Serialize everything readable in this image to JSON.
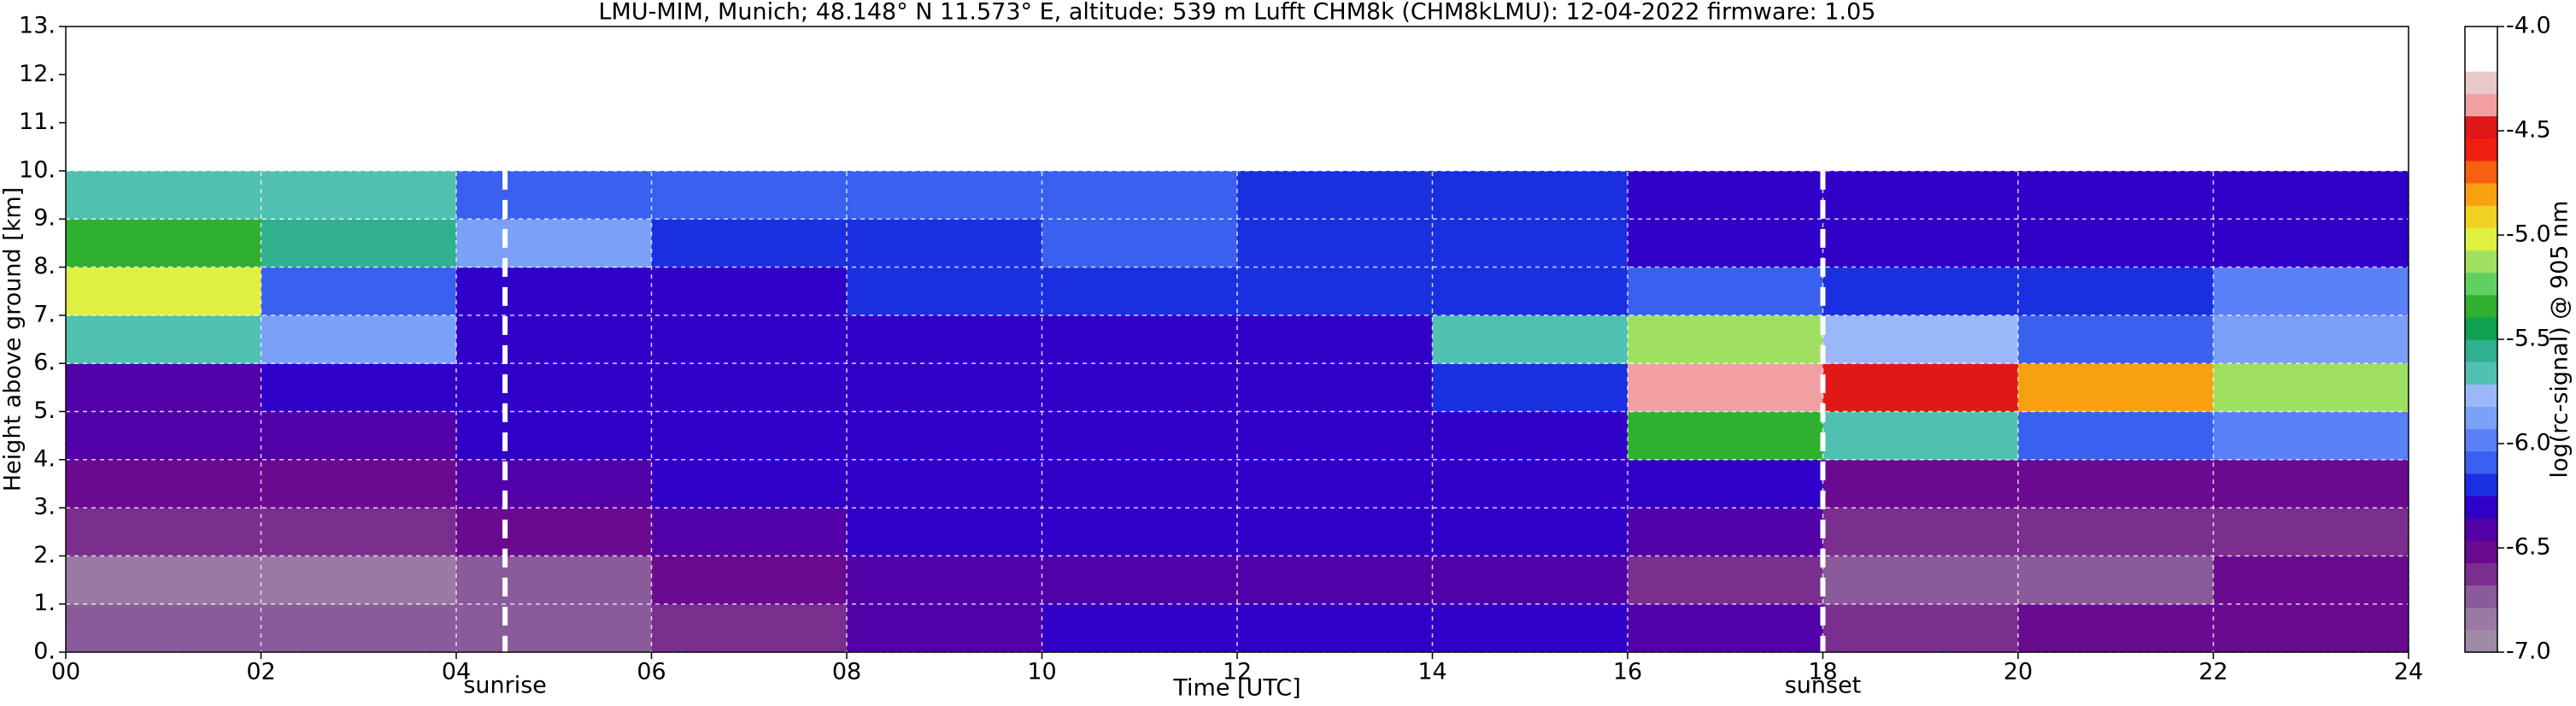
{
  "chart_data": {
    "type": "heatmap",
    "title": "LMU-MIM, Munich; 48.148° N 11.573° E, altitude: 539 m    Lufft CHM8k (CHM8kLMU): 12-04-2022    firmware: 1.05",
    "x_label": "Time [UTC]",
    "y_label": "Height above ground [km]",
    "colorbar_label": "log(rc-signal) @ 905 nm",
    "xlim": [
      0,
      24
    ],
    "ylim": [
      0,
      13
    ],
    "xticks": [
      {
        "value": 0,
        "label": "00"
      },
      {
        "value": 2,
        "label": "02"
      },
      {
        "value": 4,
        "label": "04"
      },
      {
        "value": 6,
        "label": "06"
      },
      {
        "value": 8,
        "label": "08"
      },
      {
        "value": 10,
        "label": "10"
      },
      {
        "value": 12,
        "label": "12"
      },
      {
        "value": 14,
        "label": "14"
      },
      {
        "value": 16,
        "label": "16"
      },
      {
        "value": 18,
        "label": "18"
      },
      {
        "value": 20,
        "label": "20"
      },
      {
        "value": 22,
        "label": "22"
      },
      {
        "value": 24,
        "label": "24"
      }
    ],
    "yticks": [
      {
        "value": 0,
        "label": "0."
      },
      {
        "value": 1,
        "label": "1."
      },
      {
        "value": 2,
        "label": "2."
      },
      {
        "value": 3,
        "label": "3."
      },
      {
        "value": 4,
        "label": "4."
      },
      {
        "value": 5,
        "label": "5."
      },
      {
        "value": 6,
        "label": "6."
      },
      {
        "value": 7,
        "label": "7."
      },
      {
        "value": 8,
        "label": "8."
      },
      {
        "value": 9,
        "label": "9."
      },
      {
        "value": 10,
        "label": "10."
      },
      {
        "value": 11,
        "label": "11."
      },
      {
        "value": 12,
        "label": "12."
      },
      {
        "value": 13,
        "label": "13."
      }
    ],
    "grid": true,
    "x_bins": [
      0,
      2,
      4,
      6,
      8,
      10,
      12,
      14,
      16,
      18,
      20,
      22,
      24
    ],
    "y_bins": [
      0,
      1,
      2,
      3,
      4,
      5,
      6,
      7,
      8,
      9,
      10
    ],
    "z": [
      [
        -6.7,
        -6.7,
        -6.7,
        -6.6,
        -6.4,
        -6.3,
        -6.3,
        -6.3,
        -6.4,
        -6.6,
        -6.5,
        -6.5
      ],
      [
        -6.8,
        -6.8,
        -6.7,
        -6.5,
        -6.4,
        -6.4,
        -6.4,
        -6.4,
        -6.6,
        -6.7,
        -6.7,
        -6.5
      ],
      [
        -6.6,
        -6.6,
        -6.5,
        -6.4,
        -6.3,
        -6.3,
        -6.3,
        -6.3,
        -6.4,
        -6.6,
        -6.6,
        -6.6
      ],
      [
        -6.5,
        -6.5,
        -6.4,
        -6.3,
        -6.3,
        -6.3,
        -6.3,
        -6.3,
        -6.3,
        -6.5,
        -6.5,
        -6.5
      ],
      [
        -6.4,
        -6.4,
        -6.3,
        -6.3,
        -6.3,
        -6.2,
        -6.2,
        -6.2,
        -5.2,
        -5.6,
        -6.0,
        -5.9
      ],
      [
        -6.4,
        -6.3,
        -6.3,
        -6.3,
        -6.2,
        -6.2,
        -6.2,
        -6.1,
        -4.2,
        -4.3,
        -4.6,
        -5.0
      ],
      [
        -5.6,
        -5.8,
        -6.2,
        -6.2,
        -6.2,
        -6.2,
        -6.2,
        -5.6,
        -5.0,
        -5.7,
        -6.0,
        -5.8
      ],
      [
        -4.9,
        -6.0,
        -6.2,
        -6.2,
        -6.1,
        -6.1,
        -6.1,
        -6.1,
        -6.0,
        -6.1,
        -6.1,
        -5.9
      ],
      [
        -5.2,
        -5.4,
        -5.8,
        -6.1,
        -6.1,
        -6.0,
        -6.1,
        -6.1,
        -6.2,
        -6.2,
        -6.2,
        -6.2
      ],
      [
        -5.6,
        -5.6,
        -6.0,
        -6.0,
        -6.0,
        -6.0,
        -6.1,
        -6.1,
        -6.2,
        -6.2,
        -6.2,
        -6.2
      ]
    ],
    "clim": [
      -7.0,
      -4.0
    ],
    "colorbar_ticks": [
      {
        "value": -7.0,
        "label": "-7.0"
      },
      {
        "value": -6.5,
        "label": "-6.5"
      },
      {
        "value": -6.0,
        "label": "-6.0"
      },
      {
        "value": -5.5,
        "label": "-5.5"
      },
      {
        "value": -5.0,
        "label": "-5.0"
      },
      {
        "value": -4.5,
        "label": "-4.5"
      },
      {
        "value": -4.0,
        "label": "-4.0"
      }
    ],
    "colors": [
      "#a08aa8",
      "#9a7aa4",
      "#8a5a9a",
      "#7a2e8e",
      "#6a0a90",
      "#5200a8",
      "#3000c8",
      "#1a30e0",
      "#3a60f0",
      "#5a80f8",
      "#7aa0f8",
      "#9ab8f8",
      "#50c0b0",
      "#30b090",
      "#10a050",
      "#30b030",
      "#60d060",
      "#a0e060",
      "#e0f040",
      "#f0d020",
      "#f8a010",
      "#f86010",
      "#f02010",
      "#e01818",
      "#f0a0a0",
      "#e8c8c8",
      "#ffffff",
      "#ffffff"
    ],
    "annotations": [
      {
        "x": 4.5,
        "label": "sunrise"
      },
      {
        "x": 18,
        "label": "sunset"
      }
    ]
  }
}
